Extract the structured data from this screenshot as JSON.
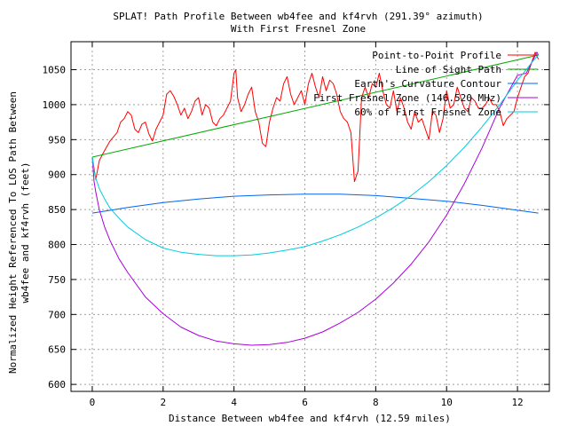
{
  "chart_data": {
    "type": "line",
    "title": "SPLAT! Path Profile Between wb4fee and kf4rvh (291.39° azimuth)",
    "subtitle": "With First Fresnel Zone",
    "xlabel": "Distance Between wb4fee and kf4rvh (12.59 miles)",
    "ylabel_lines": [
      "Normalized Height Referenced To LOS Path Between",
      "wb4fee and kf4rvh (feet)"
    ],
    "xlim": [
      -0.6,
      12.9
    ],
    "ylim": [
      590,
      1090
    ],
    "xticks": [
      0,
      2,
      4,
      6,
      8,
      10,
      12
    ],
    "yticks": [
      600,
      650,
      700,
      750,
      800,
      850,
      900,
      950,
      1000,
      1050
    ],
    "grid": true,
    "legend_position": "top-right",
    "series": [
      {
        "name": "Point-to-Point Profile",
        "color": "#ff0000",
        "x": [
          0,
          0.1,
          0.2,
          0.3,
          0.5,
          0.7,
          0.8,
          0.9,
          1.0,
          1.1,
          1.2,
          1.3,
          1.4,
          1.5,
          1.6,
          1.7,
          1.8,
          1.9,
          2.0,
          2.1,
          2.2,
          2.3,
          2.4,
          2.5,
          2.6,
          2.7,
          2.8,
          2.9,
          3.0,
          3.1,
          3.2,
          3.3,
          3.4,
          3.5,
          3.6,
          3.7,
          3.8,
          3.9,
          4.0,
          4.05,
          4.1,
          4.2,
          4.3,
          4.4,
          4.5,
          4.6,
          4.7,
          4.8,
          4.9,
          5.0,
          5.1,
          5.2,
          5.3,
          5.4,
          5.5,
          5.6,
          5.7,
          5.8,
          5.9,
          6.0,
          6.1,
          6.2,
          6.3,
          6.4,
          6.5,
          6.6,
          6.7,
          6.8,
          6.9,
          7.0,
          7.1,
          7.2,
          7.3,
          7.4,
          7.5,
          7.6,
          7.7,
          7.8,
          7.9,
          8.0,
          8.1,
          8.2,
          8.3,
          8.4,
          8.5,
          8.6,
          8.7,
          8.8,
          8.9,
          9.0,
          9.1,
          9.2,
          9.3,
          9.4,
          9.5,
          9.6,
          9.7,
          9.8,
          9.9,
          10.0,
          10.1,
          10.2,
          10.3,
          10.4,
          10.5,
          10.6,
          10.7,
          10.8,
          10.9,
          11.0,
          11.1,
          11.2,
          11.3,
          11.4,
          11.5,
          11.6,
          11.7,
          11.8,
          11.9,
          12.0,
          12.1,
          12.2,
          12.3,
          12.4,
          12.5,
          12.59
        ],
        "y": [
          925,
          893,
          920,
          930,
          948,
          960,
          975,
          980,
          990,
          985,
          965,
          960,
          972,
          975,
          958,
          948,
          965,
          975,
          985,
          1015,
          1020,
          1012,
          1000,
          985,
          995,
          980,
          990,
          1005,
          1010,
          985,
          1000,
          995,
          975,
          970,
          980,
          985,
          995,
          1005,
          1045,
          1050,
          1010,
          990,
          1000,
          1015,
          1025,
          990,
          975,
          945,
          940,
          975,
          995,
          1010,
          1005,
          1030,
          1040,
          1015,
          1000,
          1010,
          1020,
          1000,
          1030,
          1045,
          1025,
          1010,
          1040,
          1020,
          1035,
          1030,
          1015,
          990,
          980,
          975,
          960,
          890,
          905,
          1010,
          1025,
          1010,
          1030,
          1025,
          1045,
          1020,
          1000,
          995,
          1020,
          990,
          1010,
          995,
          975,
          965,
          990,
          975,
          980,
          965,
          950,
          990,
          985,
          960,
          980,
          1020,
          995,
          1000,
          1025,
          1010,
          995,
          990,
          1010,
          1005,
          995,
          995,
          1000,
          1010,
          1000,
          1000,
          990,
          970,
          980,
          985,
          990,
          1010,
          1025,
          1040,
          1045,
          1060,
          1075,
          1065
        ]
      },
      {
        "name": "Line of Sight Path",
        "color": "#00aa00",
        "x": [
          0,
          12.59
        ],
        "y": [
          925,
          1071
        ]
      },
      {
        "name": "Earth's Curvature Contour",
        "color": "#0066ee",
        "x": [
          0,
          1,
          2,
          3,
          4,
          5,
          6,
          7,
          8,
          9,
          10,
          11,
          12,
          12.59
        ],
        "y": [
          845,
          853,
          860,
          865,
          869,
          871,
          872,
          872,
          870,
          866,
          862,
          856,
          849,
          845
        ]
      },
      {
        "name": "First Fresnel Zone (146.520 MHz)",
        "color": "#aa00dd",
        "x": [
          0,
          0.05,
          0.1,
          0.2,
          0.35,
          0.5,
          0.75,
          1,
          1.5,
          2,
          2.5,
          3,
          3.5,
          4,
          4.5,
          5,
          5.5,
          6,
          6.5,
          7,
          7.5,
          8,
          8.5,
          9,
          9.5,
          10,
          10.5,
          11,
          11.5,
          12,
          12.25,
          12.4,
          12.5,
          12.55,
          12.59
        ],
        "y": [
          925,
          890,
          875,
          850,
          825,
          806,
          780,
          760,
          725,
          701,
          682,
          670,
          662,
          658,
          656,
          657,
          660,
          666,
          675,
          688,
          703,
          722,
          745,
          772,
          804,
          842,
          887,
          938,
          996,
          1042,
          1045,
          1060,
          1070,
          1075,
          1071
        ]
      },
      {
        "name": "60% of First Fresnel Zone",
        "color": "#00ccdd",
        "x": [
          0,
          0.05,
          0.1,
          0.2,
          0.35,
          0.5,
          0.75,
          1,
          1.5,
          2,
          2.5,
          3,
          3.5,
          4,
          4.5,
          5,
          5.5,
          6,
          6.5,
          7,
          7.5,
          8,
          8.5,
          9,
          9.5,
          10,
          10.5,
          11,
          11.5,
          12,
          12.25,
          12.4,
          12.5,
          12.59
        ],
        "y": [
          925,
          905,
          895,
          880,
          865,
          852,
          838,
          825,
          807,
          795,
          789,
          786,
          784,
          784,
          785,
          788,
          792,
          797,
          805,
          814,
          825,
          838,
          853,
          870,
          890,
          913,
          939,
          968,
          1000,
          1035,
          1050,
          1060,
          1066,
          1071
        ]
      }
    ]
  }
}
